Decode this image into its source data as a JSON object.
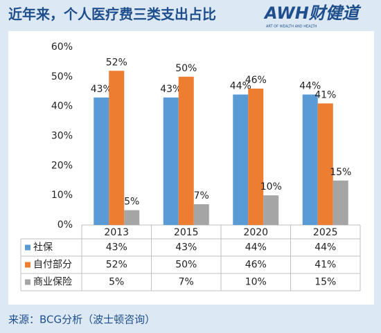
{
  "header": {
    "title": "近年来，个人医疗费三类支出占比",
    "logo": "AWH财健道",
    "logo_tagline": "ART OF WEALTH AND HEALTH"
  },
  "chart_data": {
    "type": "bar",
    "categories": [
      "2013",
      "2015",
      "2020",
      "2025"
    ],
    "series": [
      {
        "name": "社保",
        "color": "#5b9bd5",
        "values": [
          43,
          43,
          44,
          44
        ],
        "value_labels": [
          "43%",
          "43%",
          "44%",
          "44%"
        ]
      },
      {
        "name": "自付部分",
        "color": "#ed7d31",
        "values": [
          52,
          50,
          46,
          41
        ],
        "value_labels": [
          "52%",
          "50%",
          "46%",
          "41%"
        ]
      },
      {
        "name": "商业保险",
        "color": "#a5a5a5",
        "values": [
          5,
          7,
          10,
          15
        ],
        "value_labels": [
          "5%",
          "7%",
          "10%",
          "15%"
        ]
      }
    ],
    "ylim": [
      0,
      60
    ],
    "yticks": [
      {
        "value": 0,
        "label": "0%"
      },
      {
        "value": 10,
        "label": "10%"
      },
      {
        "value": 20,
        "label": "20%"
      },
      {
        "value": 30,
        "label": "30%"
      },
      {
        "value": 40,
        "label": "40%"
      },
      {
        "value": 50,
        "label": "50%"
      },
      {
        "value": 60,
        "label": "60%"
      }
    ],
    "grid": false
  },
  "source": "来源：BCG分析（波士顿咨询）"
}
